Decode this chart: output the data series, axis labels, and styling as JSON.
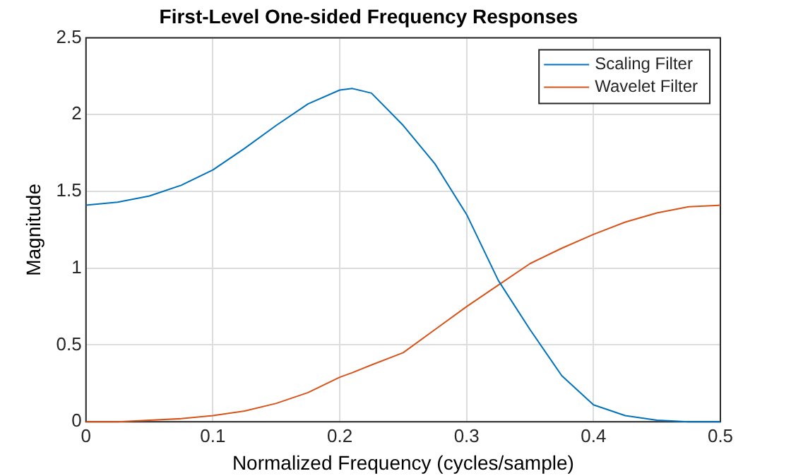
{
  "chart_data": {
    "type": "line",
    "title": "First-Level One-sided Frequency Responses",
    "xlabel": "Normalized Frequency (cycles/sample)",
    "ylabel": "Magnitude",
    "x": [
      0,
      0.025,
      0.05,
      0.075,
      0.1,
      0.125,
      0.15,
      0.175,
      0.2,
      0.21,
      0.225,
      0.25,
      0.275,
      0.3,
      0.325,
      0.35,
      0.375,
      0.4,
      0.425,
      0.45,
      0.475,
      0.5
    ],
    "series": [
      {
        "name": "Scaling Filter",
        "color": "#0072bd",
        "values": [
          1.41,
          1.43,
          1.47,
          1.54,
          1.64,
          1.78,
          1.93,
          2.07,
          2.16,
          2.17,
          2.14,
          1.93,
          1.68,
          1.35,
          0.92,
          0.6,
          0.3,
          0.11,
          0.04,
          0.01,
          0,
          0
        ]
      },
      {
        "name": "Wavelet Filter",
        "color": "#d95319",
        "values": [
          0,
          0,
          0.01,
          0.02,
          0.04,
          0.07,
          0.12,
          0.19,
          0.29,
          0.32,
          0.37,
          0.45,
          0.6,
          0.75,
          0.89,
          1.03,
          1.13,
          1.22,
          1.3,
          1.36,
          1.4,
          1.41
        ]
      }
    ],
    "xlim": [
      0,
      0.5
    ],
    "xticks": [
      0,
      0.1,
      0.2,
      0.3,
      0.4,
      0.5
    ],
    "ylim": [
      0,
      2.5
    ],
    "yticks": [
      0,
      0.5,
      1,
      1.5,
      2,
      2.5
    ],
    "grid": true,
    "legend": "top right",
    "marker": "none",
    "line_style": "solid"
  }
}
